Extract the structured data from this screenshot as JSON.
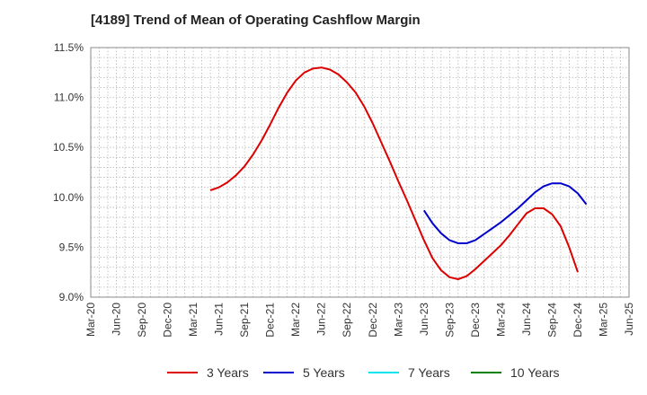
{
  "chart_data": {
    "type": "line",
    "title": "[4189]  Trend of Mean of Operating Cashflow Margin",
    "xlabel": "",
    "ylabel": "",
    "x_ticks": [
      "Mar-20",
      "Jun-20",
      "Sep-20",
      "Dec-20",
      "Mar-21",
      "Jun-21",
      "Sep-21",
      "Dec-21",
      "Mar-22",
      "Jun-22",
      "Sep-22",
      "Dec-22",
      "Mar-23",
      "Jun-23",
      "Sep-23",
      "Dec-23",
      "Mar-24",
      "Jun-24",
      "Sep-24",
      "Dec-24",
      "Mar-25",
      "Jun-25"
    ],
    "y_ticks": [
      "9.0%",
      "9.5%",
      "10.0%",
      "10.5%",
      "11.0%",
      "11.5%"
    ],
    "ylim": [
      9.0,
      11.5
    ],
    "xlim": [
      "2020-03",
      "2025-06"
    ],
    "grid": true,
    "legend_position": "bottom",
    "series": [
      {
        "name": "3 Years",
        "color": "#dd0000",
        "points": [
          [
            "2021-05",
            10.07
          ],
          [
            "2021-06",
            10.1
          ],
          [
            "2021-07",
            10.15
          ],
          [
            "2021-08",
            10.22
          ],
          [
            "2021-09",
            10.31
          ],
          [
            "2021-10",
            10.43
          ],
          [
            "2021-11",
            10.57
          ],
          [
            "2021-12",
            10.73
          ],
          [
            "2022-01",
            10.9
          ],
          [
            "2022-02",
            11.05
          ],
          [
            "2022-03",
            11.17
          ],
          [
            "2022-04",
            11.25
          ],
          [
            "2022-05",
            11.29
          ],
          [
            "2022-06",
            11.3
          ],
          [
            "2022-07",
            11.28
          ],
          [
            "2022-08",
            11.23
          ],
          [
            "2022-09",
            11.15
          ],
          [
            "2022-10",
            11.05
          ],
          [
            "2022-11",
            10.91
          ],
          [
            "2022-12",
            10.74
          ],
          [
            "2023-01",
            10.55
          ],
          [
            "2023-02",
            10.36
          ],
          [
            "2023-03",
            10.16
          ],
          [
            "2023-04",
            9.97
          ],
          [
            "2023-05",
            9.77
          ],
          [
            "2023-06",
            9.57
          ],
          [
            "2023-07",
            9.39
          ],
          [
            "2023-08",
            9.27
          ],
          [
            "2023-09",
            9.2
          ],
          [
            "2023-10",
            9.18
          ],
          [
            "2023-11",
            9.21
          ],
          [
            "2023-12",
            9.28
          ],
          [
            "2024-01",
            9.36
          ],
          [
            "2024-02",
            9.44
          ],
          [
            "2024-03",
            9.52
          ],
          [
            "2024-04",
            9.62
          ],
          [
            "2024-05",
            9.73
          ],
          [
            "2024-06",
            9.84
          ],
          [
            "2024-07",
            9.89
          ],
          [
            "2024-08",
            9.89
          ],
          [
            "2024-09",
            9.83
          ],
          [
            "2024-10",
            9.71
          ],
          [
            "2024-11",
            9.5
          ],
          [
            "2024-12",
            9.25
          ]
        ]
      },
      {
        "name": "5 Years",
        "color": "#0000cc",
        "points": [
          [
            "2023-06",
            9.87
          ],
          [
            "2023-07",
            9.74
          ],
          [
            "2023-08",
            9.64
          ],
          [
            "2023-09",
            9.57
          ],
          [
            "2023-10",
            9.54
          ],
          [
            "2023-11",
            9.54
          ],
          [
            "2023-12",
            9.57
          ],
          [
            "2024-01",
            9.63
          ],
          [
            "2024-02",
            9.69
          ],
          [
            "2024-03",
            9.75
          ],
          [
            "2024-04",
            9.82
          ],
          [
            "2024-05",
            9.89
          ],
          [
            "2024-06",
            9.97
          ],
          [
            "2024-07",
            10.05
          ],
          [
            "2024-08",
            10.11
          ],
          [
            "2024-09",
            10.14
          ],
          [
            "2024-10",
            10.14
          ],
          [
            "2024-11",
            10.11
          ],
          [
            "2024-12",
            10.04
          ],
          [
            "2025-01",
            9.93
          ]
        ]
      },
      {
        "name": "7 Years",
        "color": "#00e5ee",
        "points": []
      },
      {
        "name": "10 Years",
        "color": "#008000",
        "points": []
      }
    ]
  }
}
